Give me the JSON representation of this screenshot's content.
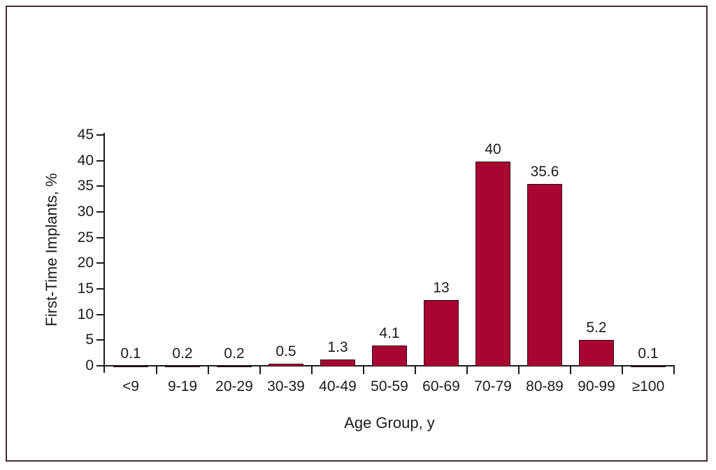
{
  "chart_data": {
    "type": "bar",
    "title": "",
    "categories": [
      "<9",
      "9-19",
      "20-29",
      "30-39",
      "40-49",
      "50-59",
      "60-69",
      "70-79",
      "80-89",
      "90-99",
      "≥100"
    ],
    "values": [
      0.1,
      0.2,
      0.2,
      0.5,
      1.3,
      4.1,
      13,
      40,
      35.6,
      5.2,
      0.1
    ],
    "value_labels": [
      "0.1",
      "0.2",
      "0.2",
      "0.5",
      "1.3",
      "4.1",
      "13",
      "40",
      "35.6",
      "5.2",
      "0.1"
    ],
    "xlabel": "Age Group, y",
    "ylabel": "First-Time Implants, %",
    "ylim": [
      0,
      45
    ],
    "yticks": [
      0,
      5,
      10,
      15,
      20,
      25,
      30,
      35,
      40,
      45
    ],
    "grid": false,
    "legend": "none",
    "bar_labels_position": "above"
  },
  "colors": {
    "bar_fill": "#a90533",
    "bar_edge": "#2a0d16",
    "axis": "#1c1c1c",
    "text": "#1c1c1c",
    "frame_border": "#4a2c38",
    "background": "#ffffff"
  }
}
